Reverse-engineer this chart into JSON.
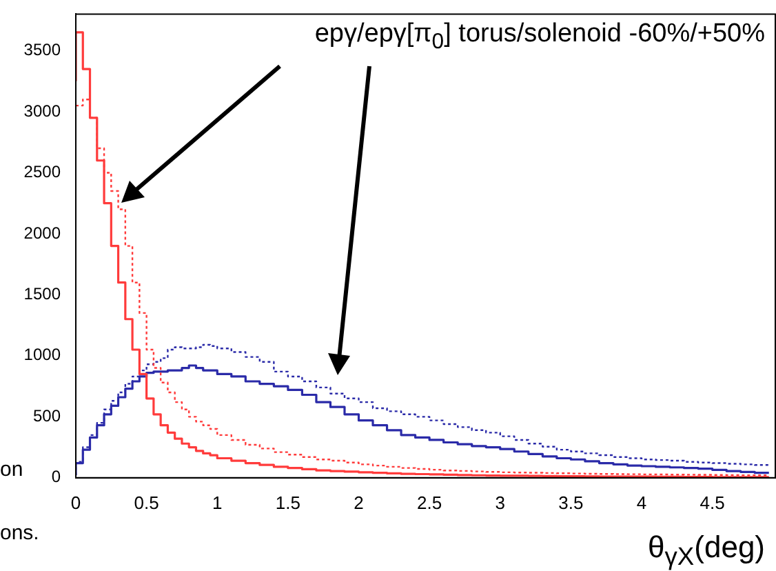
{
  "chart_data": {
    "type": "step",
    "title": "epγ/epγ[π$_{0}$] torus/solenoid -60%/+50%",
    "xlabel": "θ$_{γX}$(deg)",
    "annotations": [
      "on",
      "ons."
    ],
    "x": [
      0,
      0.05,
      0.1,
      0.15,
      0.2,
      0.25,
      0.3,
      0.35,
      0.4,
      0.45,
      0.5,
      0.55,
      0.6,
      0.65,
      0.7,
      0.75,
      0.8,
      0.85,
      0.9,
      0.95,
      1.0,
      1.1,
      1.2,
      1.3,
      1.4,
      1.5,
      1.6,
      1.7,
      1.8,
      1.9,
      2.0,
      2.1,
      2.2,
      2.3,
      2.4,
      2.5,
      2.6,
      2.7,
      2.8,
      2.9,
      3.0,
      3.1,
      3.2,
      3.3,
      3.4,
      3.5,
      3.6,
      3.7,
      3.8,
      3.9,
      4.0,
      4.1,
      4.2,
      4.3,
      4.4,
      4.5,
      4.6,
      4.7,
      4.8,
      4.9
    ],
    "series": [
      {
        "color": "#ff3b3b",
        "line_style": "solid",
        "values": [
          3250,
          3650,
          3350,
          2950,
          2600,
          2250,
          1900,
          1600,
          1300,
          1050,
          850,
          650,
          520,
          430,
          370,
          320,
          280,
          250,
          220,
          200,
          185,
          160,
          140,
          120,
          105,
          90,
          80,
          70,
          60,
          55,
          50,
          45,
          40,
          36,
          32,
          30,
          28,
          25,
          22,
          20,
          18,
          17,
          16,
          15,
          14,
          13,
          12,
          11,
          10,
          10,
          9,
          9,
          8,
          8,
          7,
          7,
          6,
          6,
          5,
          5
        ]
      },
      {
        "color": "#ff3b3b",
        "line_style": "dotted",
        "values": [
          3050,
          3050,
          3100,
          2950,
          2700,
          2500,
          2350,
          2200,
          1900,
          1600,
          1350,
          1050,
          900,
          780,
          700,
          620,
          560,
          500,
          460,
          430,
          400,
          350,
          310,
          270,
          240,
          210,
          190,
          170,
          150,
          140,
          125,
          110,
          100,
          90,
          80,
          72,
          66,
          60,
          56,
          52,
          48,
          45,
          43,
          41,
          39,
          37,
          35,
          33,
          31,
          30,
          29,
          28,
          27,
          26,
          25,
          24,
          23,
          22,
          21,
          20
        ]
      },
      {
        "color": "#2a2aa8",
        "line_style": "solid",
        "values": [
          20,
          120,
          230,
          330,
          430,
          520,
          590,
          660,
          730,
          790,
          830,
          860,
          870,
          870,
          880,
          880,
          900,
          920,
          900,
          880,
          880,
          850,
          830,
          790,
          770,
          750,
          720,
          680,
          620,
          580,
          520,
          470,
          430,
          390,
          350,
          330,
          310,
          290,
          275,
          260,
          250,
          235,
          215,
          195,
          175,
          160,
          150,
          135,
          120,
          110,
          100,
          95,
          90,
          85,
          80,
          75,
          65,
          55,
          48,
          40
        ]
      },
      {
        "color": "#2a2aa8",
        "line_style": "dotted",
        "values": [
          20,
          130,
          250,
          350,
          450,
          560,
          630,
          700,
          770,
          830,
          880,
          930,
          950,
          980,
          1050,
          1070,
          1060,
          1060,
          1070,
          1090,
          1080,
          1060,
          1030,
          990,
          950,
          870,
          830,
          790,
          740,
          690,
          650,
          620,
          570,
          545,
          520,
          500,
          470,
          440,
          415,
          390,
          370,
          340,
          310,
          280,
          255,
          230,
          215,
          200,
          185,
          170,
          160,
          150,
          145,
          140,
          130,
          125,
          120,
          115,
          110,
          105
        ]
      }
    ],
    "xlim": [
      0,
      4.95
    ],
    "xticks": [
      0,
      0.5,
      1,
      1.5,
      2,
      2.5,
      3,
      3.5,
      4,
      4.5
    ],
    "ylim": [
      0,
      3800
    ],
    "yticks": [
      0,
      500,
      1000,
      1500,
      2000,
      2500,
      3000,
      3500
    ],
    "grid": false,
    "legend": false,
    "marker": "none"
  }
}
